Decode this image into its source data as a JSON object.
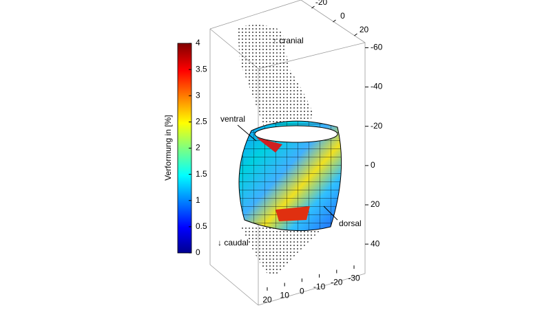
{
  "chart_data": {
    "type": "surface3d",
    "colorbar": {
      "label": "Verformung in [%]",
      "lim": [
        0,
        4
      ],
      "ticks": [
        0,
        0.5,
        1,
        1.5,
        2,
        2.5,
        3,
        3.5,
        4
      ]
    },
    "x": {
      "lim": [
        25,
        -35
      ],
      "ticks": [
        20,
        10,
        0,
        -10,
        -20,
        -30
      ]
    },
    "y": {
      "lim": [
        -30,
        30
      ],
      "ticks": [
        -20,
        0,
        20
      ]
    },
    "z": {
      "lim": [
        -64,
        55
      ],
      "ticks": [
        -60,
        -40,
        -20,
        0,
        20,
        40
      ]
    },
    "annotations": [
      "↑ cranial",
      "ventral",
      "dorsal",
      "↓ caudal"
    ]
  }
}
